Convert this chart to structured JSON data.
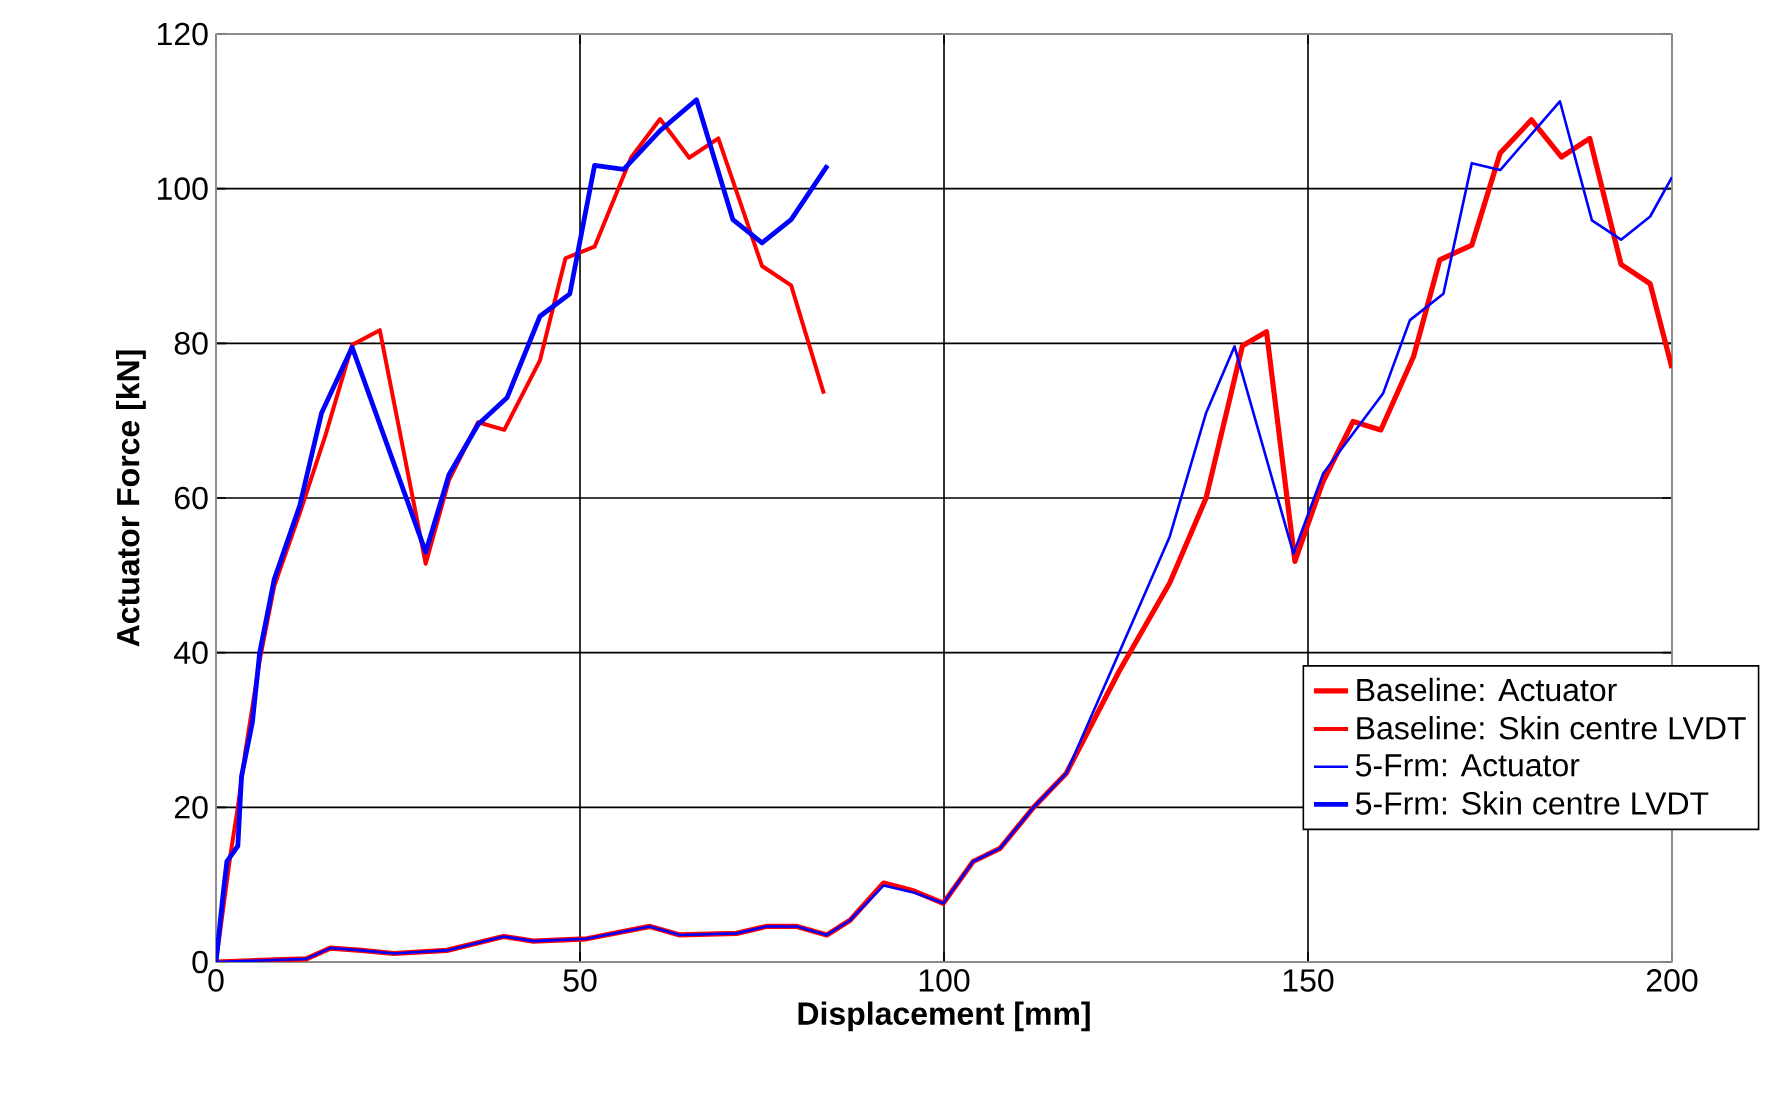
{
  "chart_data": {
    "type": "line",
    "xlabel": "Displacement [mm]",
    "ylabel": "Actuator Force [kN]",
    "xlim": [
      0,
      200
    ],
    "ylim": [
      0,
      120
    ],
    "xticks": [
      0,
      50,
      100,
      150,
      200
    ],
    "yticks": [
      0,
      20,
      40,
      60,
      80,
      100,
      120
    ],
    "grid": true,
    "legend": "bottom right",
    "marker": "none",
    "line_style": "solid",
    "series": [
      {
        "name": "Baseline: Actuator",
        "color": "#ff0000",
        "x": [
          0,
          12.4,
          15.7,
          20,
          24.4,
          31.7,
          39.5,
          43.6,
          50.9,
          59.6,
          63.7,
          71.5,
          75.6,
          79.8,
          83.9,
          87.1,
          91.7,
          95.8,
          99.9,
          104,
          107.7,
          112.3,
          116.8,
          124,
          131,
          136,
          141,
          144.3,
          148.2,
          152,
          156.2,
          160,
          164.5,
          168.1,
          172.5,
          176.4,
          180.7,
          184.8,
          188.7,
          193,
          197,
          200
        ],
        "values": [
          0,
          0.4,
          1.8,
          1.5,
          1.1,
          1.5,
          3.3,
          2.7,
          3,
          4.6,
          3.5,
          3.7,
          4.6,
          4.6,
          3.5,
          5.4,
          10.2,
          9.2,
          7.6,
          13,
          14.7,
          20,
          24.4,
          37.5,
          49,
          60,
          79.7,
          81.5,
          51.8,
          62,
          69.9,
          68.8,
          78.3,
          90.8,
          92.7,
          104.6,
          108.9,
          104.1,
          106.5,
          90.2,
          87.7,
          76.8
        ]
      },
      {
        "name": "Baseline: Skin centre LVDT",
        "color": "#ff0000",
        "x": [
          0,
          1,
          2,
          3,
          4,
          6,
          8,
          11.5,
          15,
          18.7,
          22.5,
          28.8,
          32,
          36,
          39.6,
          44.5,
          48,
          52,
          57,
          61,
          65,
          69,
          75,
          79,
          83.5
        ],
        "values": [
          0,
          null,
          14,
          20,
          27,
          39,
          48.6,
          58,
          68,
          79.8,
          81.7,
          51.5,
          62.3,
          69.8,
          68.8,
          77.8,
          91,
          92.5,
          104,
          109,
          104,
          106.5,
          90,
          87.5,
          73.5
        ]
      },
      {
        "name": "5-Frm: Actuator",
        "color": "#0000ff",
        "x": [
          0,
          12.4,
          15.7,
          20,
          24.4,
          31.7,
          39.5,
          43.6,
          50.9,
          59.6,
          63.7,
          71.5,
          75.6,
          79.8,
          83.9,
          87.1,
          91.7,
          95.8,
          99.9,
          104,
          107.7,
          112.3,
          116.8,
          126,
          131,
          136,
          139.9,
          148,
          152.1,
          160.3,
          164,
          168.6,
          172.5,
          176.4,
          184.6,
          189,
          193,
          197,
          200
        ],
        "values": [
          0,
          0.4,
          1.8,
          1.5,
          1.1,
          1.5,
          3.3,
          2.7,
          3,
          4.6,
          3.5,
          3.7,
          4.6,
          4.6,
          3.5,
          5.4,
          9.9,
          9,
          7.6,
          13,
          14.7,
          20,
          24.4,
          44.2,
          55,
          71,
          79.6,
          52.8,
          63.2,
          73.5,
          83,
          86.4,
          103.3,
          102.4,
          111.3,
          95.9,
          93.4,
          96.4,
          101.5
        ]
      },
      {
        "name": "5-Frm: Skin centre LVDT",
        "color": "#0000ff",
        "x": [
          0,
          1,
          1.5,
          3,
          3.5,
          5,
          6,
          8,
          11.5,
          14.5,
          18.7,
          28.8,
          32,
          36,
          40,
          44.5,
          48.6,
          52,
          56,
          61,
          66,
          71,
          75,
          79,
          84
        ],
        "values": [
          0,
          9,
          13,
          15,
          24,
          31,
          40,
          49.5,
          59,
          71,
          79.5,
          53,
          63,
          69.5,
          73,
          83.5,
          86.4,
          103,
          102.5,
          107.5,
          111.5,
          96,
          93,
          96,
          103
        ]
      }
    ]
  }
}
